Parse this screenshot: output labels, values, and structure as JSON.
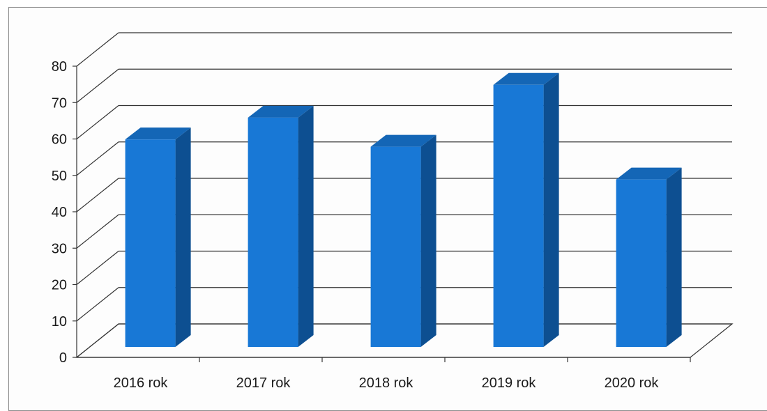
{
  "chart_data": {
    "type": "bar",
    "title": "",
    "xlabel": "",
    "ylabel": "",
    "categories": [
      "2016 rok",
      "2017 rok",
      "2018 rok",
      "2019 rok",
      "2020 rok"
    ],
    "values": [
      57,
      63,
      55,
      72,
      46
    ],
    "ylim": [
      0,
      80
    ],
    "yticks": [
      "0",
      "10",
      "20",
      "30",
      "40",
      "50",
      "60",
      "70",
      "80"
    ],
    "grid": true,
    "legend": "none",
    "style": "3d",
    "colors": {
      "bar_front": "#1878d6",
      "bar_top": "#1466b6",
      "bar_side": "#0d4f91",
      "grid": "#333333"
    }
  }
}
